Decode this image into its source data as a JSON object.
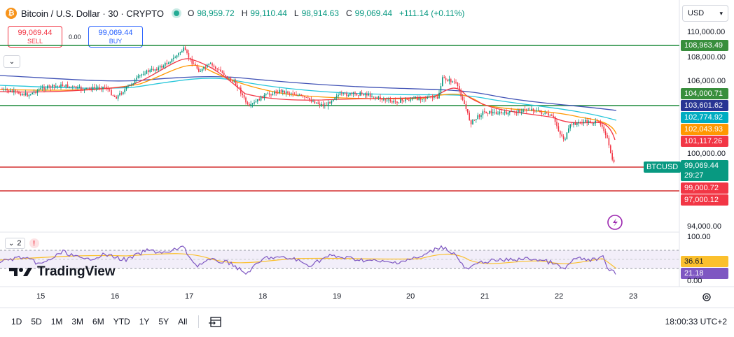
{
  "header": {
    "symbol_icon": "bitcoin-icon",
    "title": "Bitcoin / U.S. Dollar · 30 · CRYPTO",
    "ohlc": [
      {
        "k": "O",
        "v": "98,959.72"
      },
      {
        "k": "H",
        "v": "99,110.44"
      },
      {
        "k": "L",
        "v": "98,914.63"
      },
      {
        "k": "C",
        "v": "99,069.44"
      }
    ],
    "change": "+111.14 (+0.11%)"
  },
  "trade": {
    "sell_price": "99,069.44",
    "sell_label": "SELL",
    "spread": "0.00",
    "buy_price": "99,069.44",
    "buy_label": "BUY"
  },
  "currency": {
    "value": "USD"
  },
  "price_axis": {
    "labels": [
      "110,000.00",
      "108,000.00",
      "106,000.00",
      "100,000.00",
      "94,000.00"
    ],
    "tags": {
      "hline_top": "108,963.49",
      "t104": "104,000.71",
      "t1036": "103,601.62",
      "t1027": "102,774.92",
      "t1020": "102,043.93",
      "t1011": "101,117.26",
      "cur_price": "99,069.44",
      "cur_timer": "29:27",
      "t990": "99,000.72",
      "t970": "97,000.12"
    },
    "symbol_label": "BTCUSD"
  },
  "rsi": {
    "badge": "2",
    "labels": [
      "100.00",
      "0.00"
    ],
    "tags": {
      "rsi_val": "36.61",
      "rsi_ma": "21.18"
    }
  },
  "time_axis": {
    "labels": [
      "15",
      "16",
      "17",
      "18",
      "19",
      "20",
      "21",
      "22",
      "23"
    ]
  },
  "brand": {
    "name": "TradingView"
  },
  "bottom": {
    "timeframes": [
      "1D",
      "5D",
      "1M",
      "3M",
      "6M",
      "YTD",
      "1Y",
      "5Y",
      "All"
    ],
    "clock": "18:00:33 UTC+2"
  },
  "colors": {
    "up": "#089981",
    "down": "#f23645",
    "accent": "#2962ff",
    "hline_green": "#1b8a3a",
    "hline_red": "#d32f2f",
    "ema_red": "#f23645",
    "ema_orange": "#ff9800",
    "ema_teal": "#26c6da",
    "ema_navy": "#3f51b5",
    "rsi_line": "#7e57c2",
    "rsi_ma": "#fbc02d"
  }
}
